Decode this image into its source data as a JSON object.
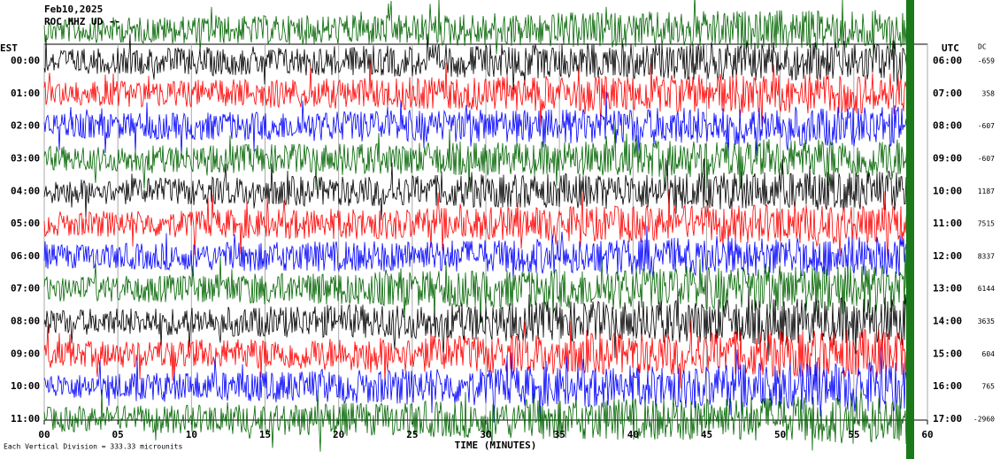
{
  "header": {
    "date": "Feb10,2025",
    "station": "ROC HHZ UD --"
  },
  "left_label": "EST",
  "right_label": "UTC",
  "dc_label": "DC",
  "x_axis": {
    "label": "TIME (MINUTES)",
    "lim": [
      0,
      60
    ],
    "ticks": [
      {
        "value": 0,
        "label": "00"
      },
      {
        "value": 5,
        "label": "05"
      },
      10,
      15,
      20,
      25,
      30,
      35,
      40,
      45,
      50,
      55,
      60
    ]
  },
  "footer": "Each Vertical Division = 333.33 microunits",
  "rows": [
    {
      "est": "00:00",
      "utc": "06:00",
      "dc": -659
    },
    {
      "est": "01:00",
      "utc": "07:00",
      "dc": 358
    },
    {
      "est": "02:00",
      "utc": "08:00",
      "dc": -607
    },
    {
      "est": "03:00",
      "utc": "09:00",
      "dc": -607
    },
    {
      "est": "04:00",
      "utc": "10:00",
      "dc": 1187
    },
    {
      "est": "05:00",
      "utc": "11:00",
      "dc": 7515
    },
    {
      "est": "06:00",
      "utc": "12:00",
      "dc": 8337
    },
    {
      "est": "07:00",
      "utc": "13:00",
      "dc": 6144
    },
    {
      "est": "08:00",
      "utc": "14:00",
      "dc": 3635
    },
    {
      "est": "09:00",
      "utc": "15:00",
      "dc": 604
    },
    {
      "est": "10:00",
      "utc": "16:00",
      "dc": 765
    },
    {
      "est": "11:00",
      "utc": "17:00",
      "dc": -2960
    }
  ]
}
